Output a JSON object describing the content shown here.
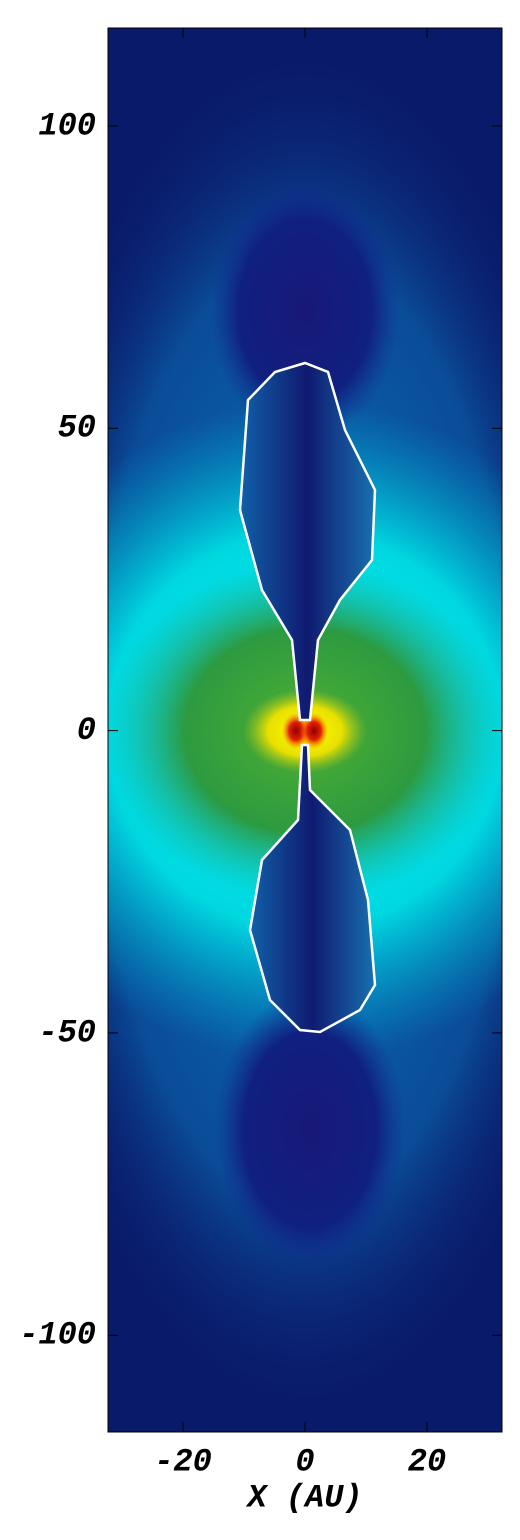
{
  "chart_data": {
    "type": "image",
    "xlabel": "X (AU)",
    "xlim": [
      -32.3,
      32.3
    ],
    "ylim": [
      -116,
      116.2
    ],
    "xticks": [
      -20,
      0,
      20
    ],
    "yticks": [
      -100,
      -50,
      0,
      50,
      100
    ]
  }
}
